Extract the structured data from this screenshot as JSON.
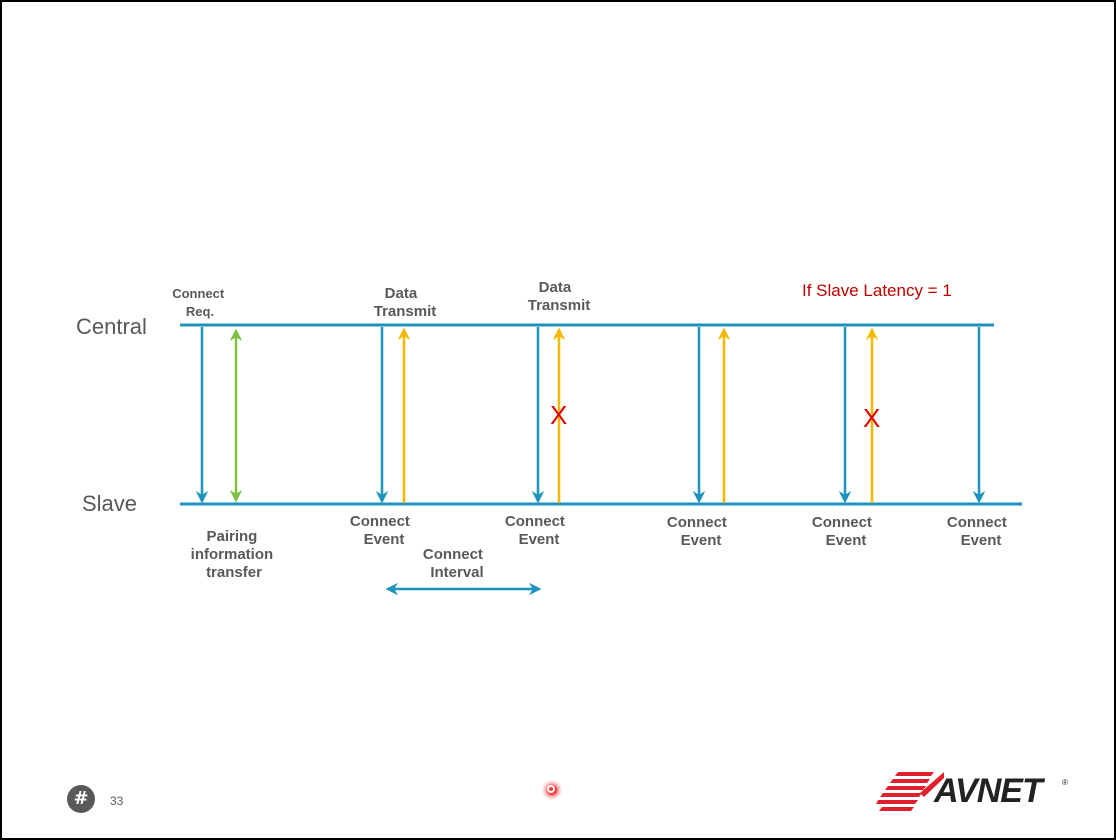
{
  "diagram": {
    "central_label": "Central",
    "slave_label": "Slave",
    "connect_req": [
      "Connect",
      "Req."
    ],
    "data_transmit_1": [
      "Data",
      "Transmit"
    ],
    "data_transmit_2": [
      "Data",
      "Transmit"
    ],
    "latency_note": "If Slave Latency = 1",
    "pairing": [
      "Pairing",
      "information",
      "transfer"
    ],
    "connect_interval": [
      "Connect",
      "Interval"
    ],
    "connect_event": [
      "Connect",
      "Event"
    ],
    "x_mark": "X",
    "colors": {
      "timeline": "#1f93bd",
      "pairing_arrow": "#7dc142",
      "data_arrow": "#f5b800",
      "text": "#595959",
      "note": "#c00000"
    }
  },
  "footer": {
    "hash_icon": "hash-icon",
    "page_number": "33",
    "logo_text": "AVNET",
    "logo_reg": "®"
  }
}
